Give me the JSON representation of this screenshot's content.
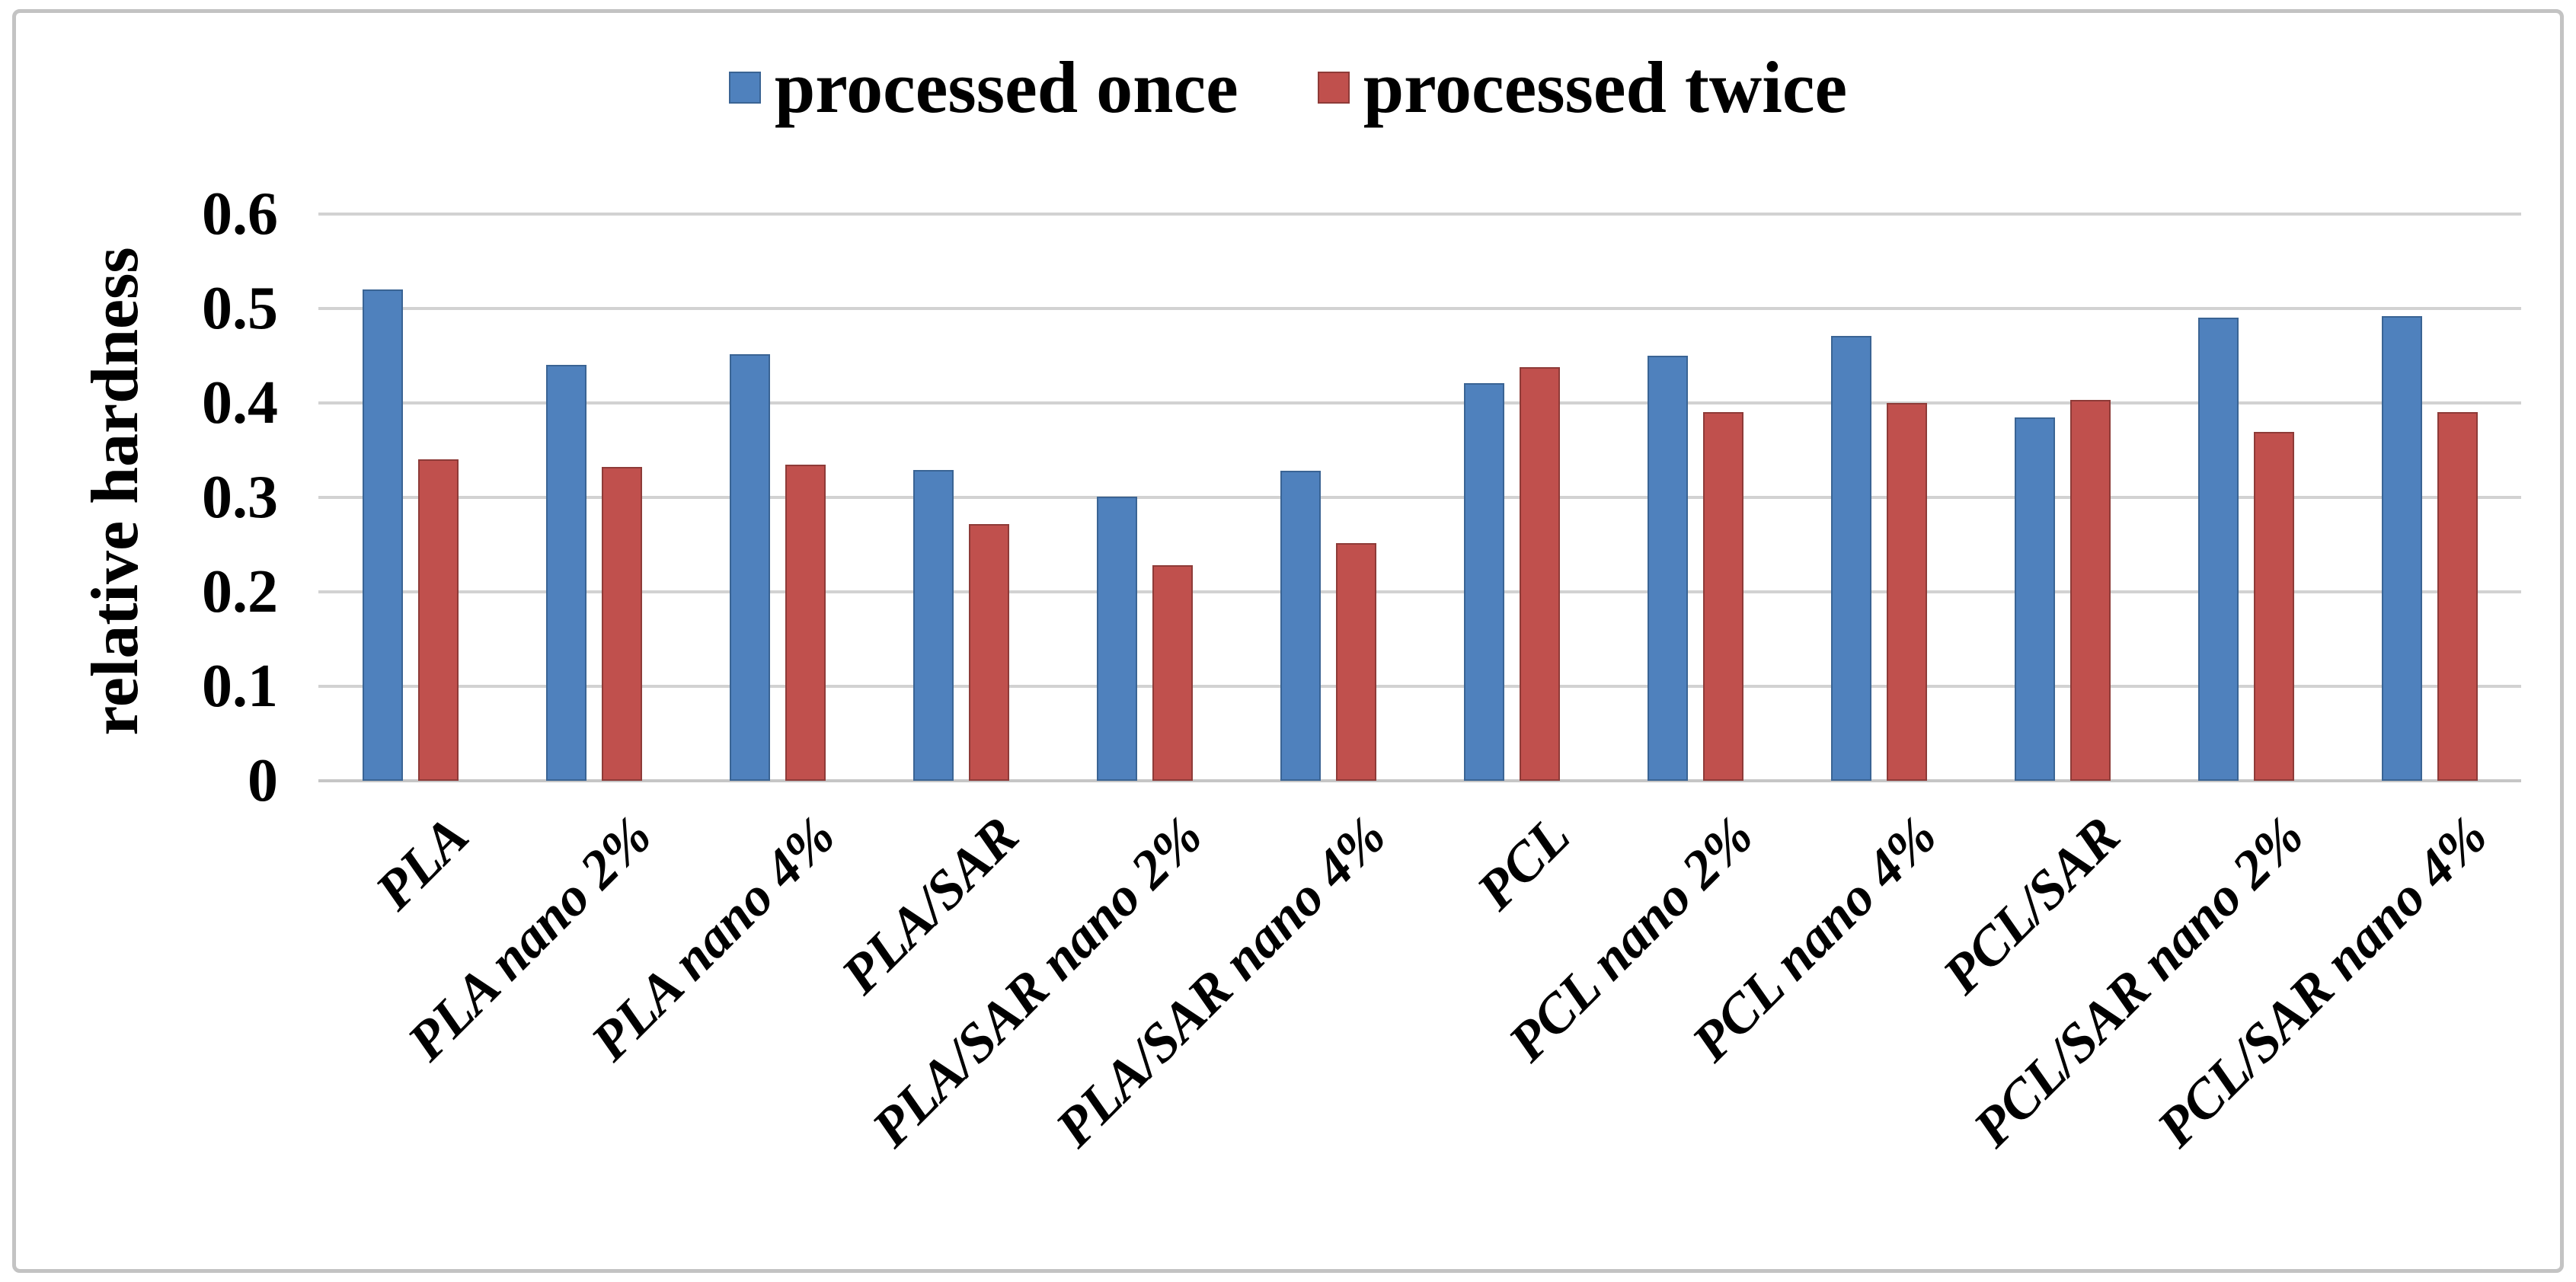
{
  "chart_data": {
    "type": "bar",
    "title": "",
    "xlabel": "",
    "ylabel": "relative hardness",
    "categories": [
      "PLA",
      "PLA nano 2%",
      "PLA nano 4%",
      "PLA/SAR",
      "PLA/SAR nano 2%",
      "PLA/SAR nano 4%",
      "PCL",
      "PCL nano 2%",
      "PCL nano 4%",
      "PCL/SAR",
      "PCL/SAR nano 2%",
      "PCL/SAR nano 4%"
    ],
    "series": [
      {
        "name": "processed once",
        "color": "#4F81BD",
        "border_color": "#3A6494",
        "values": [
          0.52,
          0.44,
          0.452,
          0.329,
          0.301,
          0.328,
          0.421,
          0.45,
          0.471,
          0.385,
          0.49,
          0.492
        ]
      },
      {
        "name": "processed twice",
        "color": "#C0504D",
        "border_color": "#8E3B38",
        "values": [
          0.34,
          0.332,
          0.335,
          0.272,
          0.228,
          0.252,
          0.438,
          0.39,
          0.4,
          0.403,
          0.369,
          0.39
        ]
      }
    ],
    "ylim": [
      0,
      0.6
    ],
    "ytick_step": 0.1,
    "ytick_labels": [
      "0",
      "0.1",
      "0.2",
      "0.3",
      "0.4",
      "0.5",
      "0.6"
    ],
    "grid": true,
    "legend_position": "top-center"
  }
}
